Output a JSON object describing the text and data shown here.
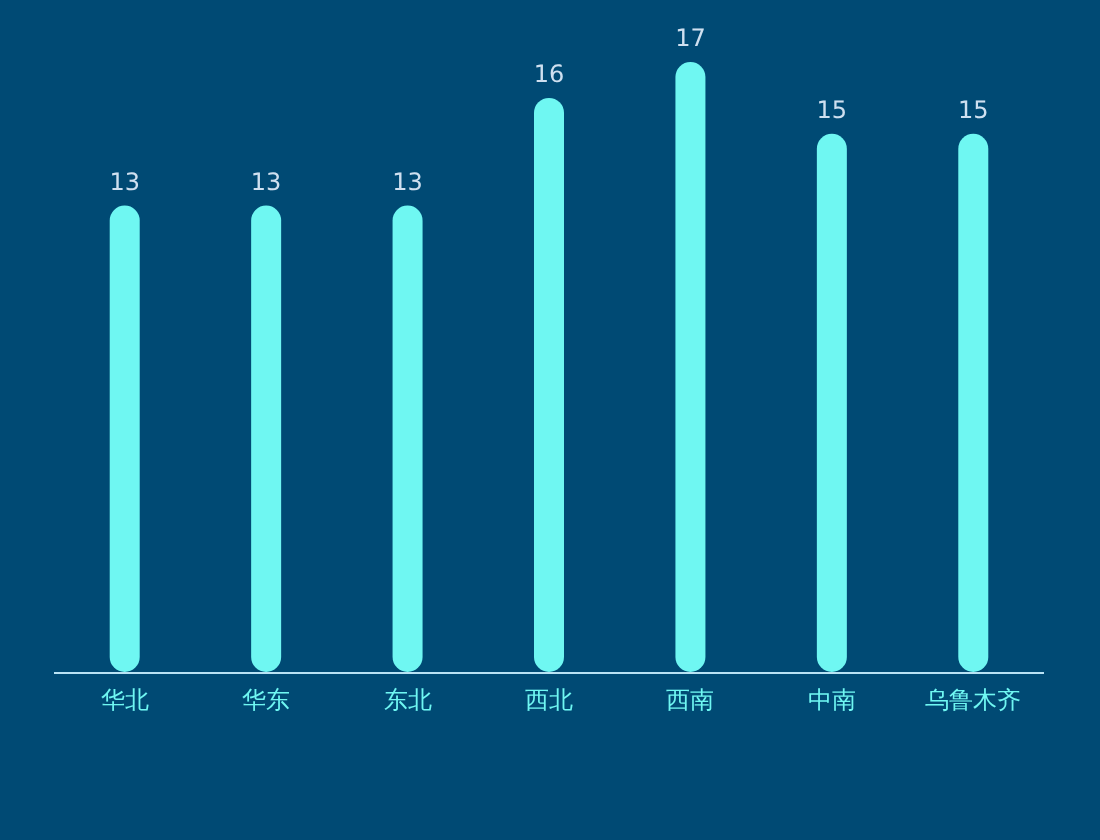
{
  "chart_data": {
    "type": "bar",
    "categories": [
      "华北",
      "华东",
      "东北",
      "西北",
      "西南",
      "中南",
      "乌鲁木齐"
    ],
    "values": [
      13,
      13,
      13,
      16,
      17,
      15,
      15
    ],
    "color": "#6ff7f2",
    "data_labels": true
  }
}
